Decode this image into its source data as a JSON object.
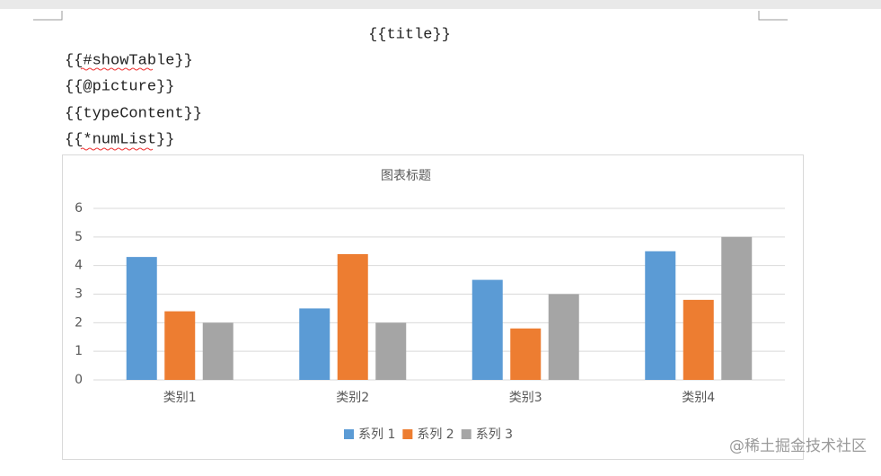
{
  "document": {
    "lines": [
      "{{title}}",
      "{{#showTable}}",
      "{{@picture}}",
      "{{typeContent}}",
      "{{*numList}}"
    ],
    "watermark": "@稀土掘金技术社区"
  },
  "chart_data": {
    "type": "bar",
    "title": "图表标题",
    "categories": [
      "类别1",
      "类别2",
      "类别3",
      "类别4"
    ],
    "series": [
      {
        "name": "系列 1",
        "color": "#5b9bd5",
        "values": [
          4.3,
          2.5,
          3.5,
          4.5
        ]
      },
      {
        "name": "系列 2",
        "color": "#ed7d31",
        "values": [
          2.4,
          4.4,
          1.8,
          2.8
        ]
      },
      {
        "name": "系列 3",
        "color": "#a5a5a5",
        "values": [
          2,
          2,
          3,
          5
        ]
      }
    ],
    "ylim": [
      0,
      6
    ],
    "yticks": [
      0,
      1,
      2,
      3,
      4,
      5,
      6
    ],
    "grid": true,
    "legend": "bottom"
  }
}
